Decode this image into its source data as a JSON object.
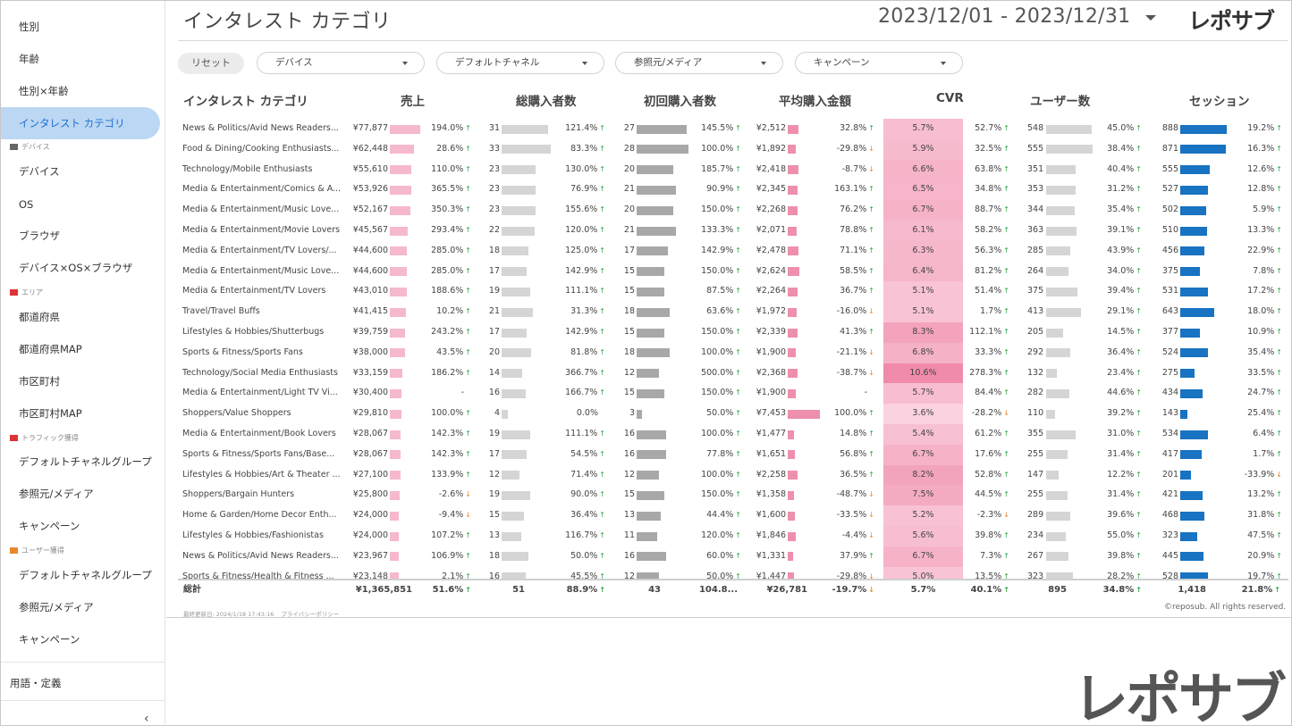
{
  "header": {
    "title": "インタレスト カテゴリ",
    "date_range": "2023/12/01 - 2023/12/31",
    "logo": "レポサブ"
  },
  "sidebar": {
    "items": [
      {
        "label": "性別",
        "type": "item"
      },
      {
        "label": "年齢",
        "type": "item"
      },
      {
        "label": "性別×年齢",
        "type": "item"
      },
      {
        "label": "インタレスト カテゴリ",
        "type": "item",
        "active": true
      },
      {
        "label": "デバイス",
        "type": "section",
        "icon": "monitor-icon"
      },
      {
        "label": "デバイス",
        "type": "item"
      },
      {
        "label": "OS",
        "type": "item"
      },
      {
        "label": "ブラウザ",
        "type": "item"
      },
      {
        "label": "デバイス×OS×ブラウザ",
        "type": "item"
      },
      {
        "label": "エリア",
        "type": "section",
        "icon": "japan-flag-icon"
      },
      {
        "label": "都道府県",
        "type": "item"
      },
      {
        "label": "都道府県MAP",
        "type": "item"
      },
      {
        "label": "市区町村",
        "type": "item"
      },
      {
        "label": "市区町村MAP",
        "type": "item"
      },
      {
        "label": "トラフィック獲得",
        "type": "section",
        "icon": "car-icon"
      },
      {
        "label": "デフォルトチャネルグループ",
        "type": "item"
      },
      {
        "label": "参照元/メディア",
        "type": "item"
      },
      {
        "label": "キャンペーン",
        "type": "item"
      },
      {
        "label": "ユーザー獲得",
        "type": "section",
        "icon": "runner-icon"
      },
      {
        "label": "デフォルトチャネルグループ",
        "type": "item"
      },
      {
        "label": "参照元/メディア",
        "type": "item"
      },
      {
        "label": "キャンペーン",
        "type": "item"
      }
    ],
    "glossary": "用語・定義",
    "collapse_icon": "chevron-left-icon"
  },
  "filters": {
    "reset": "リセット",
    "device": "デバイス",
    "channel": "デフォルトチャネル",
    "source": "参照元/メディア",
    "campaign": "キャンペーン"
  },
  "columns": [
    "インタレスト カテゴリ",
    "売上",
    "総購入者数",
    "初回購入者数",
    "平均購入金額",
    "CVR",
    "ユーザー数",
    "セッション"
  ],
  "colors": {
    "revenue_bar": "#f6b9cc",
    "gray_bar": "#d5d5d5",
    "dark_gray_bar": "#a8a8a8",
    "avg_bar": "#ee8fac",
    "session_bar": "#1873c2",
    "up": "#2ea84a",
    "down": "#e8892a"
  },
  "rows": [
    {
      "name": "News & Politics/Avid News Readers...",
      "rev": "¥77,877",
      "rev_v": 77877,
      "rev_c": "194.0%",
      "rev_d": "up",
      "tot": 31,
      "tot_c": "121.4%",
      "tot_d": "up",
      "first": 27,
      "first_c": "145.5%",
      "first_d": "up",
      "avg": "¥2,512",
      "avg_v": 2512,
      "avg_c": "32.8%",
      "avg_d": "up",
      "cvr": "5.7%",
      "cvr_v": 5.7,
      "cvr_c": "52.7%",
      "cvr_d": "up",
      "users": 548,
      "users_c": "45.0%",
      "users_d": "up",
      "sess": 888,
      "sess_c": "19.2%",
      "sess_d": "up"
    },
    {
      "name": "Food & Dining/Cooking Enthusiasts...",
      "rev": "¥62,448",
      "rev_v": 62448,
      "rev_c": "28.6%",
      "rev_d": "up",
      "tot": 33,
      "tot_c": "83.3%",
      "tot_d": "up",
      "first": 28,
      "first_c": "100.0%",
      "first_d": "up",
      "avg": "¥1,892",
      "avg_v": 1892,
      "avg_c": "-29.8%",
      "avg_d": "down",
      "cvr": "5.9%",
      "cvr_v": 5.9,
      "cvr_c": "32.5%",
      "cvr_d": "up",
      "users": 555,
      "users_c": "38.4%",
      "users_d": "up",
      "sess": 871,
      "sess_c": "16.3%",
      "sess_d": "up"
    },
    {
      "name": "Technology/Mobile Enthusiasts",
      "rev": "¥55,610",
      "rev_v": 55610,
      "rev_c": "110.0%",
      "rev_d": "up",
      "tot": 23,
      "tot_c": "130.0%",
      "tot_d": "up",
      "first": 20,
      "first_c": "185.7%",
      "first_d": "up",
      "avg": "¥2,418",
      "avg_v": 2418,
      "avg_c": "-8.7%",
      "avg_d": "down",
      "cvr": "6.6%",
      "cvr_v": 6.6,
      "cvr_c": "63.8%",
      "cvr_d": "up",
      "users": 351,
      "users_c": "40.4%",
      "users_d": "up",
      "sess": 555,
      "sess_c": "12.6%",
      "sess_d": "up"
    },
    {
      "name": "Media & Entertainment/Comics & A...",
      "rev": "¥53,926",
      "rev_v": 53926,
      "rev_c": "365.5%",
      "rev_d": "up",
      "tot": 23,
      "tot_c": "76.9%",
      "tot_d": "up",
      "first": 21,
      "first_c": "90.9%",
      "first_d": "up",
      "avg": "¥2,345",
      "avg_v": 2345,
      "avg_c": "163.1%",
      "avg_d": "up",
      "cvr": "6.5%",
      "cvr_v": 6.5,
      "cvr_c": "34.8%",
      "cvr_d": "up",
      "users": 353,
      "users_c": "31.2%",
      "users_d": "up",
      "sess": 527,
      "sess_c": "12.8%",
      "sess_d": "up"
    },
    {
      "name": "Media & Entertainment/Music Love...",
      "rev": "¥52,167",
      "rev_v": 52167,
      "rev_c": "350.3%",
      "rev_d": "up",
      "tot": 23,
      "tot_c": "155.6%",
      "tot_d": "up",
      "first": 20,
      "first_c": "150.0%",
      "first_d": "up",
      "avg": "¥2,268",
      "avg_v": 2268,
      "avg_c": "76.2%",
      "avg_d": "up",
      "cvr": "6.7%",
      "cvr_v": 6.7,
      "cvr_c": "88.7%",
      "cvr_d": "up",
      "users": 344,
      "users_c": "35.4%",
      "users_d": "up",
      "sess": 502,
      "sess_c": "5.9%",
      "sess_d": "up"
    },
    {
      "name": "Media & Entertainment/Movie Lovers",
      "rev": "¥45,567",
      "rev_v": 45567,
      "rev_c": "293.4%",
      "rev_d": "up",
      "tot": 22,
      "tot_c": "120.0%",
      "tot_d": "up",
      "first": 21,
      "first_c": "133.3%",
      "first_d": "up",
      "avg": "¥2,071",
      "avg_v": 2071,
      "avg_c": "78.8%",
      "avg_d": "up",
      "cvr": "6.1%",
      "cvr_v": 6.1,
      "cvr_c": "58.2%",
      "cvr_d": "up",
      "users": 363,
      "users_c": "39.1%",
      "users_d": "up",
      "sess": 510,
      "sess_c": "13.3%",
      "sess_d": "up"
    },
    {
      "name": "Media & Entertainment/TV Lovers/...",
      "rev": "¥44,600",
      "rev_v": 44600,
      "rev_c": "285.0%",
      "rev_d": "up",
      "tot": 18,
      "tot_c": "125.0%",
      "tot_d": "up",
      "first": 17,
      "first_c": "142.9%",
      "first_d": "up",
      "avg": "¥2,478",
      "avg_v": 2478,
      "avg_c": "71.1%",
      "avg_d": "up",
      "cvr": "6.3%",
      "cvr_v": 6.3,
      "cvr_c": "56.3%",
      "cvr_d": "up",
      "users": 285,
      "users_c": "43.9%",
      "users_d": "up",
      "sess": 456,
      "sess_c": "22.9%",
      "sess_d": "up"
    },
    {
      "name": "Media & Entertainment/Music Love...",
      "rev": "¥44,600",
      "rev_v": 44600,
      "rev_c": "285.0%",
      "rev_d": "up",
      "tot": 17,
      "tot_c": "142.9%",
      "tot_d": "up",
      "first": 15,
      "first_c": "150.0%",
      "first_d": "up",
      "avg": "¥2,624",
      "avg_v": 2624,
      "avg_c": "58.5%",
      "avg_d": "up",
      "cvr": "6.4%",
      "cvr_v": 6.4,
      "cvr_c": "81.2%",
      "cvr_d": "up",
      "users": 264,
      "users_c": "34.0%",
      "users_d": "up",
      "sess": 375,
      "sess_c": "7.8%",
      "sess_d": "up"
    },
    {
      "name": "Media & Entertainment/TV Lovers",
      "rev": "¥43,010",
      "rev_v": 43010,
      "rev_c": "188.6%",
      "rev_d": "up",
      "tot": 19,
      "tot_c": "111.1%",
      "tot_d": "up",
      "first": 15,
      "first_c": "87.5%",
      "first_d": "up",
      "avg": "¥2,264",
      "avg_v": 2264,
      "avg_c": "36.7%",
      "avg_d": "up",
      "cvr": "5.1%",
      "cvr_v": 5.1,
      "cvr_c": "51.4%",
      "cvr_d": "up",
      "users": 375,
      "users_c": "39.4%",
      "users_d": "up",
      "sess": 531,
      "sess_c": "17.2%",
      "sess_d": "up"
    },
    {
      "name": "Travel/Travel Buffs",
      "rev": "¥41,415",
      "rev_v": 41415,
      "rev_c": "10.2%",
      "rev_d": "up",
      "tot": 21,
      "tot_c": "31.3%",
      "tot_d": "up",
      "first": 18,
      "first_c": "63.6%",
      "first_d": "up",
      "avg": "¥1,972",
      "avg_v": 1972,
      "avg_c": "-16.0%",
      "avg_d": "down",
      "cvr": "5.1%",
      "cvr_v": 5.1,
      "cvr_c": "1.7%",
      "cvr_d": "up",
      "users": 413,
      "users_c": "29.1%",
      "users_d": "up",
      "sess": 643,
      "sess_c": "18.0%",
      "sess_d": "up"
    },
    {
      "name": "Lifestyles & Hobbies/Shutterbugs",
      "rev": "¥39,759",
      "rev_v": 39759,
      "rev_c": "243.2%",
      "rev_d": "up",
      "tot": 17,
      "tot_c": "142.9%",
      "tot_d": "up",
      "first": 15,
      "first_c": "150.0%",
      "first_d": "up",
      "avg": "¥2,339",
      "avg_v": 2339,
      "avg_c": "41.3%",
      "avg_d": "up",
      "cvr": "8.3%",
      "cvr_v": 8.3,
      "cvr_c": "112.1%",
      "cvr_d": "up",
      "users": 205,
      "users_c": "14.5%",
      "users_d": "up",
      "sess": 377,
      "sess_c": "10.9%",
      "sess_d": "up"
    },
    {
      "name": "Sports & Fitness/Sports Fans",
      "rev": "¥38,000",
      "rev_v": 38000,
      "rev_c": "43.5%",
      "rev_d": "up",
      "tot": 20,
      "tot_c": "81.8%",
      "tot_d": "up",
      "first": 18,
      "first_c": "100.0%",
      "first_d": "up",
      "avg": "¥1,900",
      "avg_v": 1900,
      "avg_c": "-21.1%",
      "avg_d": "down",
      "cvr": "6.8%",
      "cvr_v": 6.8,
      "cvr_c": "33.3%",
      "cvr_d": "up",
      "users": 292,
      "users_c": "36.4%",
      "users_d": "up",
      "sess": 524,
      "sess_c": "35.4%",
      "sess_d": "up"
    },
    {
      "name": "Technology/Social Media Enthusiasts",
      "rev": "¥33,159",
      "rev_v": 33159,
      "rev_c": "186.2%",
      "rev_d": "up",
      "tot": 14,
      "tot_c": "366.7%",
      "tot_d": "up",
      "first": 12,
      "first_c": "500.0%",
      "first_d": "up",
      "avg": "¥2,368",
      "avg_v": 2368,
      "avg_c": "-38.7%",
      "avg_d": "down",
      "cvr": "10.6%",
      "cvr_v": 10.6,
      "cvr_c": "278.3%",
      "cvr_d": "up",
      "users": 132,
      "users_c": "23.4%",
      "users_d": "up",
      "sess": 275,
      "sess_c": "33.5%",
      "sess_d": "up"
    },
    {
      "name": "Media & Entertainment/Light TV Vi...",
      "rev": "¥30,400",
      "rev_v": 30400,
      "rev_c": "-",
      "rev_d": "",
      "tot": 16,
      "tot_c": "166.7%",
      "tot_d": "up",
      "first": 15,
      "first_c": "150.0%",
      "first_d": "up",
      "avg": "¥1,900",
      "avg_v": 1900,
      "avg_c": "-",
      "avg_d": "",
      "cvr": "5.7%",
      "cvr_v": 5.7,
      "cvr_c": "84.4%",
      "cvr_d": "up",
      "users": 282,
      "users_c": "44.6%",
      "users_d": "up",
      "sess": 434,
      "sess_c": "24.7%",
      "sess_d": "up"
    },
    {
      "name": "Shoppers/Value Shoppers",
      "rev": "¥29,810",
      "rev_v": 29810,
      "rev_c": "100.0%",
      "rev_d": "up",
      "tot": 4,
      "tot_c": "0.0%",
      "tot_d": "",
      "first": 3,
      "first_c": "50.0%",
      "first_d": "up",
      "avg": "¥7,453",
      "avg_v": 7453,
      "avg_c": "100.0%",
      "avg_d": "up",
      "cvr": "3.6%",
      "cvr_v": 3.6,
      "cvr_c": "-28.2%",
      "cvr_d": "down",
      "users": 110,
      "users_c": "39.2%",
      "users_d": "up",
      "sess": 143,
      "sess_c": "25.4%",
      "sess_d": "up"
    },
    {
      "name": "Media & Entertainment/Book Lovers",
      "rev": "¥28,067",
      "rev_v": 28067,
      "rev_c": "142.3%",
      "rev_d": "up",
      "tot": 19,
      "tot_c": "111.1%",
      "tot_d": "up",
      "first": 16,
      "first_c": "100.0%",
      "first_d": "up",
      "avg": "¥1,477",
      "avg_v": 1477,
      "avg_c": "14.8%",
      "avg_d": "up",
      "cvr": "5.4%",
      "cvr_v": 5.4,
      "cvr_c": "61.2%",
      "cvr_d": "up",
      "users": 355,
      "users_c": "31.0%",
      "users_d": "up",
      "sess": 534,
      "sess_c": "6.4%",
      "sess_d": "up"
    },
    {
      "name": "Sports & Fitness/Sports Fans/Base...",
      "rev": "¥28,067",
      "rev_v": 28067,
      "rev_c": "142.3%",
      "rev_d": "up",
      "tot": 17,
      "tot_c": "54.5%",
      "tot_d": "up",
      "first": 16,
      "first_c": "77.8%",
      "first_d": "up",
      "avg": "¥1,651",
      "avg_v": 1651,
      "avg_c": "56.8%",
      "avg_d": "up",
      "cvr": "6.7%",
      "cvr_v": 6.7,
      "cvr_c": "17.6%",
      "cvr_d": "up",
      "users": 255,
      "users_c": "31.4%",
      "users_d": "up",
      "sess": 417,
      "sess_c": "1.7%",
      "sess_d": "up"
    },
    {
      "name": "Lifestyles & Hobbies/Art & Theater ...",
      "rev": "¥27,100",
      "rev_v": 27100,
      "rev_c": "133.9%",
      "rev_d": "up",
      "tot": 12,
      "tot_c": "71.4%",
      "tot_d": "up",
      "first": 12,
      "first_c": "100.0%",
      "first_d": "up",
      "avg": "¥2,258",
      "avg_v": 2258,
      "avg_c": "36.5%",
      "avg_d": "up",
      "cvr": "8.2%",
      "cvr_v": 8.2,
      "cvr_c": "52.8%",
      "cvr_d": "up",
      "users": 147,
      "users_c": "12.2%",
      "users_d": "up",
      "sess": 201,
      "sess_c": "-33.9%",
      "sess_d": "down"
    },
    {
      "name": "Shoppers/Bargain Hunters",
      "rev": "¥25,800",
      "rev_v": 25800,
      "rev_c": "-2.6%",
      "rev_d": "down",
      "tot": 19,
      "tot_c": "90.0%",
      "tot_d": "up",
      "first": 15,
      "first_c": "150.0%",
      "first_d": "up",
      "avg": "¥1,358",
      "avg_v": 1358,
      "avg_c": "-48.7%",
      "avg_d": "down",
      "cvr": "7.5%",
      "cvr_v": 7.5,
      "cvr_c": "44.5%",
      "cvr_d": "up",
      "users": 255,
      "users_c": "31.4%",
      "users_d": "up",
      "sess": 421,
      "sess_c": "13.2%",
      "sess_d": "up"
    },
    {
      "name": "Home & Garden/Home Decor Enth...",
      "rev": "¥24,000",
      "rev_v": 24000,
      "rev_c": "-9.4%",
      "rev_d": "down",
      "tot": 15,
      "tot_c": "36.4%",
      "tot_d": "up",
      "first": 13,
      "first_c": "44.4%",
      "first_d": "up",
      "avg": "¥1,600",
      "avg_v": 1600,
      "avg_c": "-33.5%",
      "avg_d": "down",
      "cvr": "5.2%",
      "cvr_v": 5.2,
      "cvr_c": "-2.3%",
      "cvr_d": "down",
      "users": 289,
      "users_c": "39.6%",
      "users_d": "up",
      "sess": 468,
      "sess_c": "31.8%",
      "sess_d": "up"
    },
    {
      "name": "Lifestyles & Hobbies/Fashionistas",
      "rev": "¥24,000",
      "rev_v": 24000,
      "rev_c": "107.2%",
      "rev_d": "up",
      "tot": 13,
      "tot_c": "116.7%",
      "tot_d": "up",
      "first": 11,
      "first_c": "120.0%",
      "first_d": "up",
      "avg": "¥1,846",
      "avg_v": 1846,
      "avg_c": "-4.4%",
      "avg_d": "down",
      "cvr": "5.6%",
      "cvr_v": 5.6,
      "cvr_c": "39.8%",
      "cvr_d": "up",
      "users": 234,
      "users_c": "55.0%",
      "users_d": "up",
      "sess": 323,
      "sess_c": "47.5%",
      "sess_d": "up"
    },
    {
      "name": "News & Politics/Avid News Readers...",
      "rev": "¥23,967",
      "rev_v": 23967,
      "rev_c": "106.9%",
      "rev_d": "up",
      "tot": 18,
      "tot_c": "50.0%",
      "tot_d": "up",
      "first": 16,
      "first_c": "60.0%",
      "first_d": "up",
      "avg": "¥1,331",
      "avg_v": 1331,
      "avg_c": "37.9%",
      "avg_d": "up",
      "cvr": "6.7%",
      "cvr_v": 6.7,
      "cvr_c": "7.3%",
      "cvr_d": "up",
      "users": 267,
      "users_c": "39.8%",
      "users_d": "up",
      "sess": 445,
      "sess_c": "20.9%",
      "sess_d": "up"
    },
    {
      "name": "Sports & Fitness/Health & Fitness ...",
      "rev": "¥23,148",
      "rev_v": 23148,
      "rev_c": "2.1%",
      "rev_d": "up",
      "tot": 16,
      "tot_c": "45.5%",
      "tot_d": "up",
      "first": 12,
      "first_c": "50.0%",
      "first_d": "up",
      "avg": "¥1,447",
      "avg_v": 1447,
      "avg_c": "-29.8%",
      "avg_d": "down",
      "cvr": "5.0%",
      "cvr_v": 5.0,
      "cvr_c": "13.5%",
      "cvr_d": "up",
      "users": 323,
      "users_c": "28.2%",
      "users_d": "up",
      "sess": 528,
      "sess_c": "19.7%",
      "sess_d": "up"
    }
  ],
  "totals": {
    "label": "総計",
    "rev": "¥1,365,851",
    "rev_c": "51.6%",
    "rev_d": "up",
    "tot": "51",
    "tot_c": "88.9%",
    "tot_d": "up",
    "first": "43",
    "first_c": "104.8...",
    "avg": "¥26,781",
    "avg_c": "-19.7%",
    "avg_d": "down",
    "cvr": "5.7%",
    "cvr_c": "40.1%",
    "cvr_d": "up",
    "users": "895",
    "users_c": "34.8%",
    "users_d": "up",
    "sess": "1,418",
    "sess_c": "21.8%",
    "sess_d": "up"
  },
  "footer": {
    "updated": "最終更新日: 2024/1/18 17:43:16",
    "privacy": "プライバシーポリシー",
    "copyright": "©reposub. All rights reserved."
  },
  "watermark_logo": "レポサブ"
}
